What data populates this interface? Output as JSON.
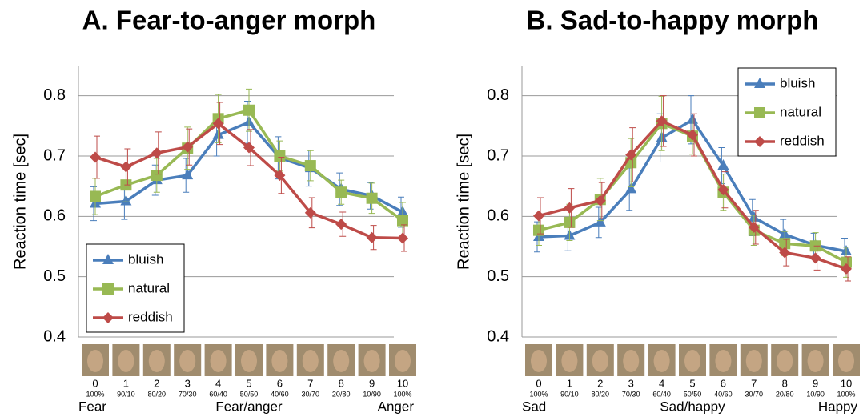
{
  "chart_data": [
    {
      "type": "line",
      "title": "A. Fear-to-anger morph",
      "y_label": "Reaction time [sec]",
      "categories": [
        "0",
        "1",
        "2",
        "3",
        "4",
        "5",
        "6",
        "7",
        "8",
        "9",
        "10"
      ],
      "x_sublabels": [
        "100%",
        "90/10",
        "80/20",
        "70/30",
        "60/40",
        "50/50",
        "40/60",
        "30/70",
        "20/80",
        "10/90",
        "100%"
      ],
      "x_end_labels": [
        "Fear",
        "Fear/anger",
        "Anger"
      ],
      "ylim": [
        0.4,
        0.85
      ],
      "yticks": [
        0.4,
        0.5,
        0.6,
        0.7,
        0.8
      ],
      "grid": true,
      "legend": "lower left",
      "series": [
        {
          "name": "bluish",
          "color": "#4a7ebb",
          "marker": "triangle",
          "values": [
            0.621,
            0.625,
            0.66,
            0.668,
            0.735,
            0.756,
            0.697,
            0.68,
            0.645,
            0.634,
            0.607
          ],
          "errors": [
            0.028,
            0.03,
            0.025,
            0.028,
            0.035,
            0.035,
            0.035,
            0.03,
            0.027,
            0.022,
            0.025
          ]
        },
        {
          "name": "natural",
          "color": "#98b954",
          "marker": "square",
          "values": [
            0.633,
            0.652,
            0.668,
            0.713,
            0.762,
            0.776,
            0.7,
            0.684,
            0.64,
            0.63,
            0.593
          ],
          "errors": [
            0.03,
            0.028,
            0.028,
            0.035,
            0.04,
            0.035,
            0.025,
            0.025,
            0.02,
            0.025,
            0.03
          ]
        },
        {
          "name": "reddish",
          "color": "#be4b48",
          "marker": "diamond",
          "values": [
            0.698,
            0.682,
            0.705,
            0.715,
            0.754,
            0.714,
            0.668,
            0.606,
            0.587,
            0.565,
            0.564
          ],
          "errors": [
            0.035,
            0.03,
            0.035,
            0.03,
            0.035,
            0.03,
            0.03,
            0.025,
            0.02,
            0.02,
            0.022
          ]
        }
      ]
    },
    {
      "type": "line",
      "title": "B. Sad-to-happy morph",
      "y_label": "Reaction time [sec]",
      "categories": [
        "0",
        "1",
        "2",
        "3",
        "4",
        "5",
        "6",
        "7",
        "8",
        "9",
        "10"
      ],
      "x_sublabels": [
        "100%",
        "90/10",
        "80/20",
        "70/30",
        "60/40",
        "50/50",
        "40/60",
        "30/70",
        "20/80",
        "10/90",
        "100%"
      ],
      "x_end_labels": [
        "Sad",
        "Sad/happy",
        "Happy"
      ],
      "ylim": [
        0.4,
        0.85
      ],
      "yticks": [
        0.4,
        0.5,
        0.6,
        0.7,
        0.8
      ],
      "grid": true,
      "legend": "upper right",
      "series": [
        {
          "name": "bluish",
          "color": "#4a7ebb",
          "marker": "triangle",
          "values": [
            0.566,
            0.568,
            0.59,
            0.645,
            0.73,
            0.76,
            0.684,
            0.598,
            0.57,
            0.552,
            0.542
          ],
          "errors": [
            0.025,
            0.025,
            0.025,
            0.035,
            0.04,
            0.04,
            0.03,
            0.03,
            0.025,
            0.02,
            0.022
          ]
        },
        {
          "name": "natural",
          "color": "#98b954",
          "marker": "square",
          "values": [
            0.577,
            0.59,
            0.628,
            0.689,
            0.754,
            0.733,
            0.64,
            0.577,
            0.555,
            0.551,
            0.524
          ],
          "errors": [
            0.025,
            0.03,
            0.035,
            0.04,
            0.045,
            0.03,
            0.03,
            0.025,
            0.02,
            0.022,
            0.025
          ]
        },
        {
          "name": "reddish",
          "color": "#be4b48",
          "marker": "diamond",
          "values": [
            0.601,
            0.614,
            0.626,
            0.702,
            0.758,
            0.735,
            0.644,
            0.582,
            0.54,
            0.531,
            0.513
          ],
          "errors": [
            0.03,
            0.032,
            0.03,
            0.045,
            0.042,
            0.035,
            0.03,
            0.028,
            0.022,
            0.02,
            0.02
          ]
        }
      ]
    }
  ]
}
